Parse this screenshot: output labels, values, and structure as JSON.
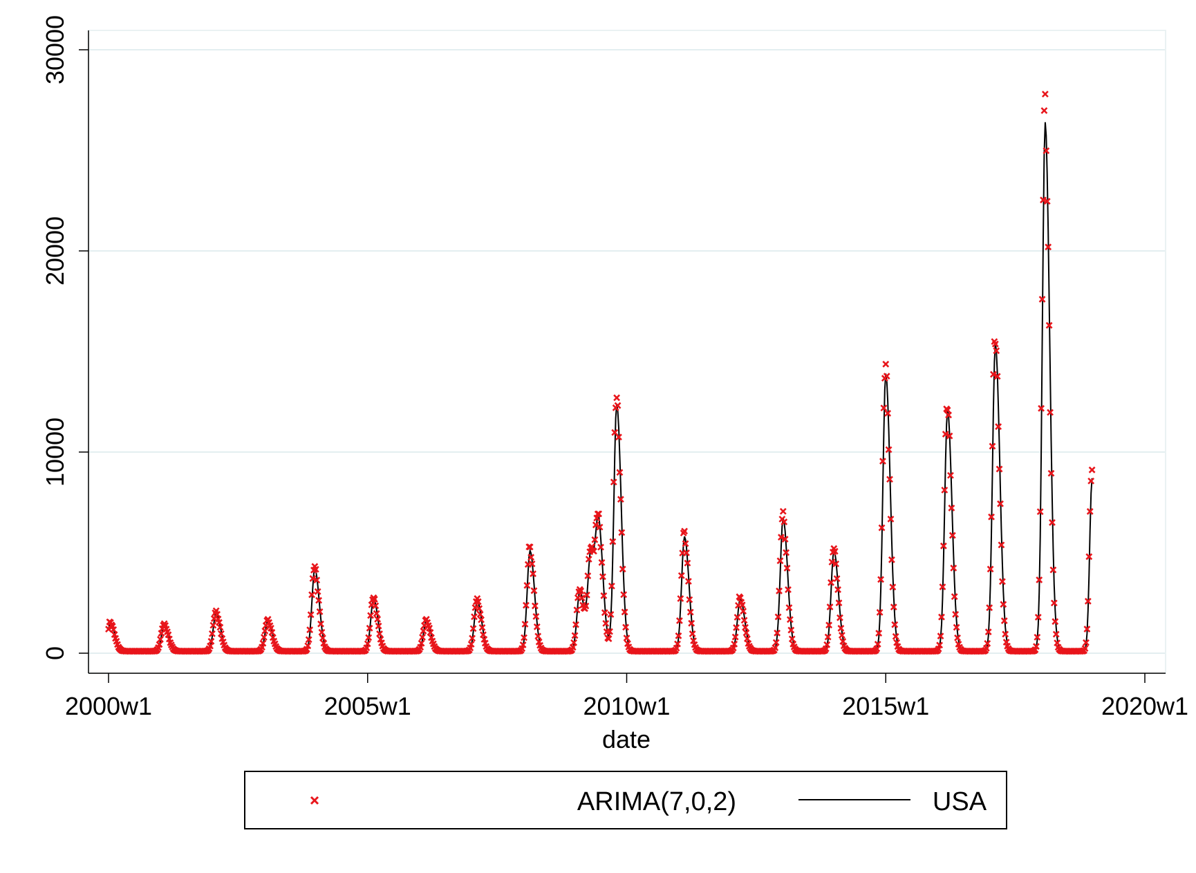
{
  "chart_data": {
    "type": "line",
    "title": "",
    "xlabel": "date",
    "ylabel": "",
    "x_range": [
      "2000w1",
      "2020w1"
    ],
    "x_ticks": [
      "2000w1",
      "2005w1",
      "2010w1",
      "2015w1",
      "2020w1"
    ],
    "ylim": [
      0,
      30000
    ],
    "y_ticks": [
      "0",
      "10000",
      "20000",
      "30000"
    ],
    "grid": true,
    "legend_position": "bottom",
    "series": [
      {
        "name": "ARIMA(7,0,2)",
        "type": "scatter",
        "marker": "x",
        "color": "#e8151b"
      },
      {
        "name": "USA",
        "type": "line",
        "color": "#000000"
      }
    ],
    "usa_peaks": [
      {
        "peak": "2000w3",
        "value": 1400
      },
      {
        "peak": "2001w5",
        "value": 1300
      },
      {
        "peak": "2002w5",
        "value": 1900
      },
      {
        "peak": "2003w5",
        "value": 1500
      },
      {
        "peak": "2003w52",
        "value": 4100
      },
      {
        "peak": "2005w7",
        "value": 2600
      },
      {
        "peak": "2006w8",
        "value": 1500
      },
      {
        "peak": "2007w7",
        "value": 2500
      },
      {
        "peak": "2008w8",
        "value": 5000
      },
      {
        "peak": "2009w6",
        "value": 3000
      },
      {
        "peak": "2009w17",
        "value": 4800
      },
      {
        "peak": "2009w25",
        "value": 5800
      },
      {
        "peak": "2009w43",
        "value": 12300
      },
      {
        "peak": "2011w7",
        "value": 5700
      },
      {
        "peak": "2012w11",
        "value": 2600
      },
      {
        "peak": "2013w2",
        "value": 6600
      },
      {
        "peak": "2014w1",
        "value": 5000
      },
      {
        "peak": "2015w1",
        "value": 13800
      },
      {
        "peak": "2016w11",
        "value": 12000
      },
      {
        "peak": "2017w7",
        "value": 15300
      },
      {
        "peak": "2018w5",
        "value": 26300
      }
    ],
    "last_value": {
      "x": "2018w52",
      "usa": 8600,
      "arima": 8600
    }
  }
}
